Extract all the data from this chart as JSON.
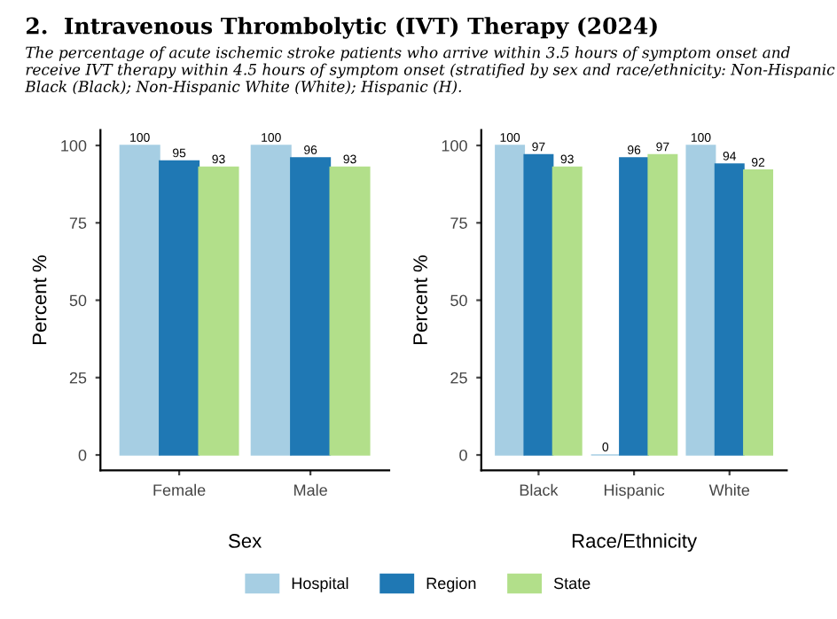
{
  "chart_data": [
    {
      "type": "bar",
      "title": "2.  Intravenous Thrombolytic (IVT) Therapy (2024)",
      "subtitle": "The percentage of acute ischemic stroke patients who arrive within 3.5 hours of symptom onset and receive IVT therapy within 4.5 hours of symptom onset (stratified by sex and race/ethnicity: Non-Hispanic Black (Black); Non-Hispanic White (White); Hispanic (H).",
      "xlabel": "Sex",
      "ylabel": "Percent %",
      "categories": [
        "Female",
        "Male"
      ],
      "series": [
        {
          "color": "#a6cee3",
          "values": [
            100,
            100
          ]
        },
        {
          "color": "#1f78b4",
          "values": [
            95,
            96
          ]
        },
        {
          "color": "#b2df8a",
          "values": [
            93,
            93
          ]
        }
      ],
      "ylim": [
        -5,
        105
      ],
      "yticks": [
        0,
        25,
        50,
        75,
        100
      ],
      "data_labels": true,
      "grid": false
    },
    {
      "type": "bar",
      "xlabel": "Race/Ethnicity",
      "ylabel": "Percent %",
      "categories": [
        "Black",
        "Hispanic",
        "White"
      ],
      "series": [
        {
          "name": "Hospital",
          "color": "#a6cee3",
          "values": [
            100,
            0,
            100
          ]
        },
        {
          "name": "Region",
          "color": "#1f78b4",
          "values": [
            97,
            96,
            94
          ]
        },
        {
          "name": "State",
          "color": "#b2df8a",
          "values": [
            93,
            97,
            92
          ]
        }
      ],
      "ylim": [
        -5,
        105
      ],
      "yticks": [
        0,
        25,
        50,
        75,
        100
      ],
      "data_labels": true,
      "legend": "bottom",
      "grid": false
    }
  ]
}
